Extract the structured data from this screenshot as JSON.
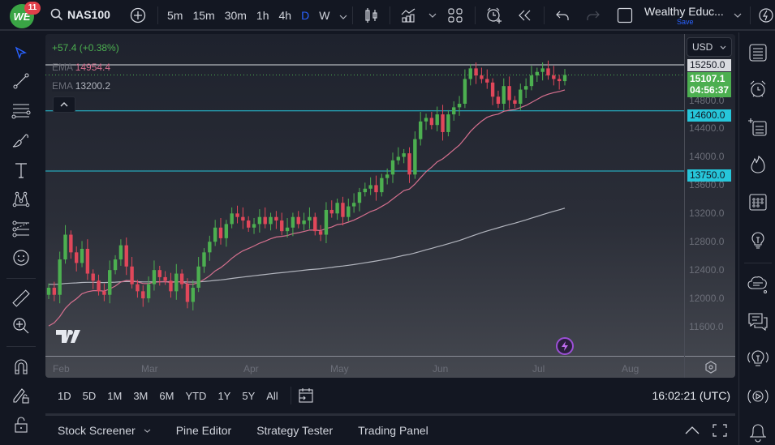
{
  "topbar": {
    "notification_count": "11",
    "logo_text": "WE",
    "symbol": "NAS100",
    "timeframes": [
      "5m",
      "15m",
      "30m",
      "1h",
      "4h",
      "D",
      "W"
    ],
    "active_timeframe": "D",
    "layout_name": "Wealthy Educ...",
    "save_label": "Save"
  },
  "legend": {
    "change": "+57.4 (+0.38%)",
    "ema1_label": "EMA",
    "ema1_value": "14954.4",
    "ema2_label": "EMA",
    "ema2_value": "13200.2"
  },
  "price_axis": {
    "currency": "USD",
    "labels": [
      "14800.0",
      "14400.0",
      "14000.0",
      "13600.0",
      "13200.0",
      "12800.0",
      "12400.0",
      "12000.0",
      "11600.0"
    ],
    "tag_top": "15250.0",
    "current_price": "15107.1",
    "countdown": "04:56:37",
    "tag_14600": "14600.0",
    "tag_13750": "13750.0"
  },
  "time_axis": {
    "labels": [
      "Feb",
      "Mar",
      "Apr",
      "May",
      "Jun",
      "Jul",
      "Aug"
    ]
  },
  "ranges": [
    "1D",
    "5D",
    "1M",
    "3M",
    "6M",
    "YTD",
    "1Y",
    "5Y",
    "All"
  ],
  "clock": "16:02:21 (UTC)",
  "panels": [
    "Stock Screener",
    "Pine Editor",
    "Strategy Tester",
    "Trading Panel"
  ],
  "colors": {
    "up": "#4caf50",
    "down": "#e0475a",
    "ema_fast": "#d6708f",
    "ema_slow": "#b2b5be",
    "hline": "#26c6da",
    "accent": "#2962ff"
  },
  "chart_data": {
    "type": "candlestick",
    "title": "NAS100, D",
    "x_labels": [
      "Feb",
      "Mar",
      "Apr",
      "May",
      "Jun",
      "Jul",
      "Aug"
    ],
    "ylim": [
      11400,
      15400
    ],
    "horizontal_lines": [
      15250,
      14600,
      13750
    ],
    "indicators": [
      {
        "name": "EMA (fast)",
        "last": 14954.4
      },
      {
        "name": "EMA (slow)",
        "last": 13200.2
      }
    ],
    "last_price": 15107.1,
    "approx_closes": [
      12100,
      12000,
      12500,
      12850,
      12600,
      12450,
      12650,
      12300,
      12200,
      12050,
      12000,
      12350,
      12500,
      12700,
      12400,
      12150,
      12050,
      11950,
      12150,
      12350,
      12250,
      12200,
      12050,
      12300,
      12150,
      11900,
      12100,
      12400,
      12600,
      12750,
      12950,
      12800,
      13000,
      13150,
      13100,
      13050,
      12950,
      13000,
      13100,
      13000,
      13100,
      13050,
      12900,
      12950,
      13100,
      13000,
      13050,
      13100,
      12900,
      12850,
      13200,
      13150,
      13300,
      13100,
      13250,
      13300,
      13450,
      13500,
      13550,
      13450,
      13650,
      13700,
      13900,
      13950,
      14000,
      13700,
      14200,
      14450,
      14500,
      14400,
      14550,
      14300,
      14550,
      14650,
      14700,
      15050,
      15200,
      15100,
      15050,
      15000,
      14800,
      14700,
      14950,
      14750,
      14700,
      14900,
      14950,
      15100,
      15150,
      15200,
      15100,
      15050,
      15020,
      15107
    ]
  }
}
